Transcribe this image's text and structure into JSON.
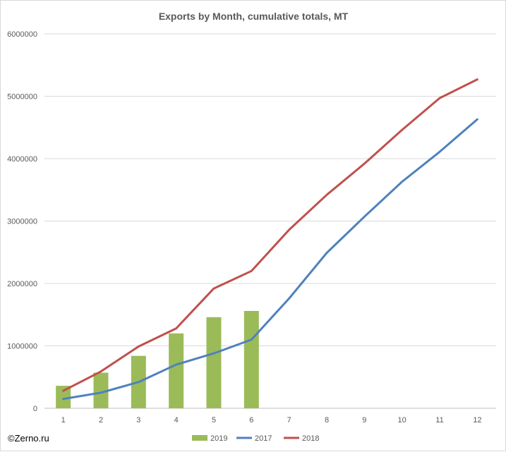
{
  "chart_data": {
    "type": "bar+line",
    "title": "Exports by Month, cumulative totals, MT",
    "xlabel": "",
    "ylabel": "",
    "categories": [
      "1",
      "2",
      "3",
      "4",
      "5",
      "6",
      "7",
      "8",
      "9",
      "10",
      "11",
      "12"
    ],
    "ylim": [
      0,
      6000000
    ],
    "yticks": [
      "0",
      "1000000",
      "2000000",
      "3000000",
      "4000000",
      "5000000",
      "6000000"
    ],
    "grid": true,
    "legend_position": "bottom",
    "series": [
      {
        "name": "2019",
        "kind": "bar",
        "color": "#9BBB59",
        "values": [
          360000,
          570000,
          840000,
          1200000,
          1460000,
          1560000,
          null,
          null,
          null,
          null,
          null,
          null
        ]
      },
      {
        "name": "2017",
        "kind": "line",
        "color": "#4F81BD",
        "values": [
          150000,
          250000,
          420000,
          700000,
          880000,
          1100000,
          1760000,
          2490000,
          3070000,
          3630000,
          4110000,
          4630000
        ]
      },
      {
        "name": "2018",
        "kind": "line",
        "color": "#C0504D",
        "values": [
          280000,
          590000,
          990000,
          1280000,
          1920000,
          2200000,
          2860000,
          3420000,
          3920000,
          4460000,
          4970000,
          5270000
        ]
      }
    ]
  },
  "credit": "©Zerno.ru"
}
